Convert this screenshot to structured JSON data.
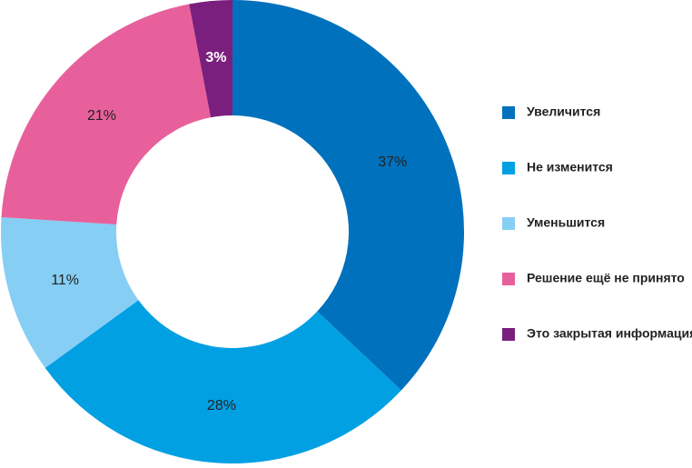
{
  "chart_data": {
    "type": "donut",
    "categories": [
      "Увеличится",
      "Не изменится",
      "Уменьшится",
      "Решение ещё не принято",
      "Это закрытая информация"
    ],
    "values": [
      37,
      28,
      11,
      21,
      3
    ],
    "value_labels": [
      "37%",
      "28%",
      "11%",
      "21%",
      "3%"
    ],
    "colors": [
      "#0071bc",
      "#00a0e3",
      "#87cef5",
      "#e8609b",
      "#7b1f7e"
    ],
    "value_label_colors": [
      "#222222",
      "#222222",
      "#222222",
      "#222222",
      "#ffffff"
    ],
    "legend": "right"
  }
}
